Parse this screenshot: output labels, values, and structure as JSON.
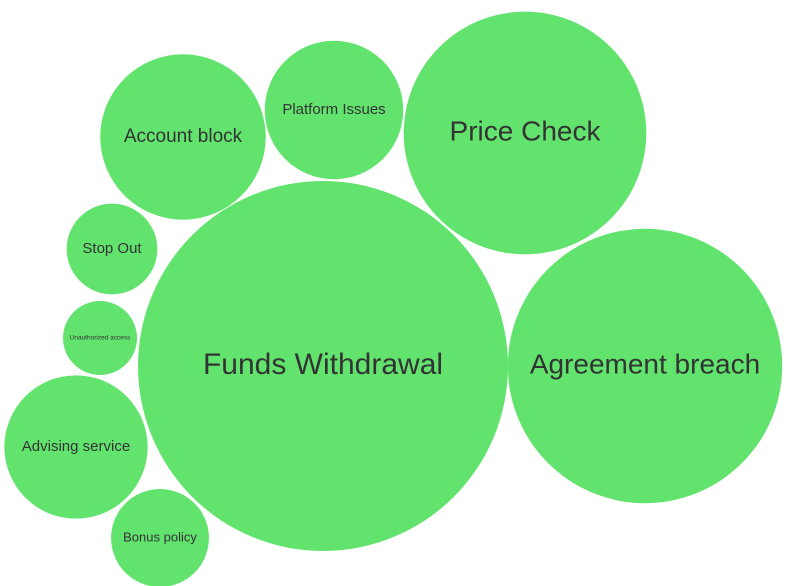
{
  "chart_data": {
    "type": "bubble",
    "categories": [
      "Funds Withdrawal",
      "Agreement breach",
      "Price Check",
      "Account block",
      "Platform Issues",
      "Stop Out",
      "Unauthorized access",
      "Advising service",
      "Bonus policy"
    ],
    "values": [
      100,
      55,
      43,
      20,
      14,
      6,
      4,
      15,
      7
    ],
    "color": "#62e36e"
  }
}
